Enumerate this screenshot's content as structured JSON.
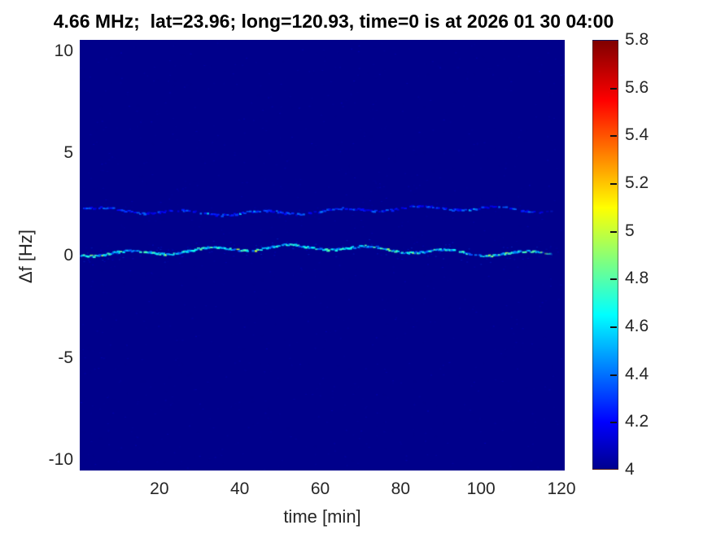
{
  "chart_data": {
    "type": "heatmap",
    "title": "4.66 MHz;  lat=23.96; long=120.93, time=0 is at 2026 01 30 04:00",
    "xlabel": "time [min]",
    "ylabel": "Δf [Hz]",
    "xlim": [
      0.2,
      120.8
    ],
    "ylim": [
      -10.5,
      10.55
    ],
    "xticks": [
      20,
      40,
      60,
      80,
      100,
      120
    ],
    "yticks": [
      10,
      5,
      0,
      -5,
      -10
    ],
    "grid": false,
    "legend": "none",
    "colorbar": {
      "position": "right",
      "min": 4,
      "max": 5.8,
      "tick_values": [
        5.8,
        5.6,
        5.4,
        5.2,
        5,
        4.8,
        4.6,
        4.4,
        4.2,
        4
      ],
      "tick_labels": [
        "5.8",
        "5.6",
        "5.4",
        "5.2",
        "5",
        "4.8",
        "4.6",
        "4.4",
        "4.2",
        "4"
      ],
      "colormap": "jet",
      "gradient_stops": [
        {
          "pos": 0.0,
          "color": "#00008f"
        },
        {
          "pos": 0.11,
          "color": "#0000ff"
        },
        {
          "pos": 0.36,
          "color": "#00ffff"
        },
        {
          "pos": 0.61,
          "color": "#ffff00"
        },
        {
          "pos": 0.86,
          "color": "#ff0000"
        },
        {
          "pos": 1.0,
          "color": "#800000"
        }
      ]
    },
    "background_level": 4.02,
    "noise": {
      "density": 0.0045,
      "level_min": 4.02,
      "level_max": 4.18,
      "alpha": 0.45
    },
    "traces": [
      {
        "name": "primary echo near 0 Hz",
        "delta_f_hz": 0.25,
        "t_start": 0.3,
        "t_end": 117.5,
        "base_level": 4.35,
        "variation": 0.5,
        "peak_level": 5.05,
        "peak_probability": 0.05,
        "gap_probability": 0.1,
        "wiggle_hz": 0.12,
        "halo_probability": 0.35
      },
      {
        "name": "secondary echo near 2.2 Hz",
        "delta_f_hz": 2.2,
        "t_start": 0.3,
        "t_end": 117.5,
        "base_level": 4.14,
        "variation": 0.3,
        "peak_level": 4.62,
        "peak_probability": 0.03,
        "gap_probability": 0.38,
        "wiggle_hz": 0.1,
        "halo_probability": 0.2
      }
    ]
  }
}
